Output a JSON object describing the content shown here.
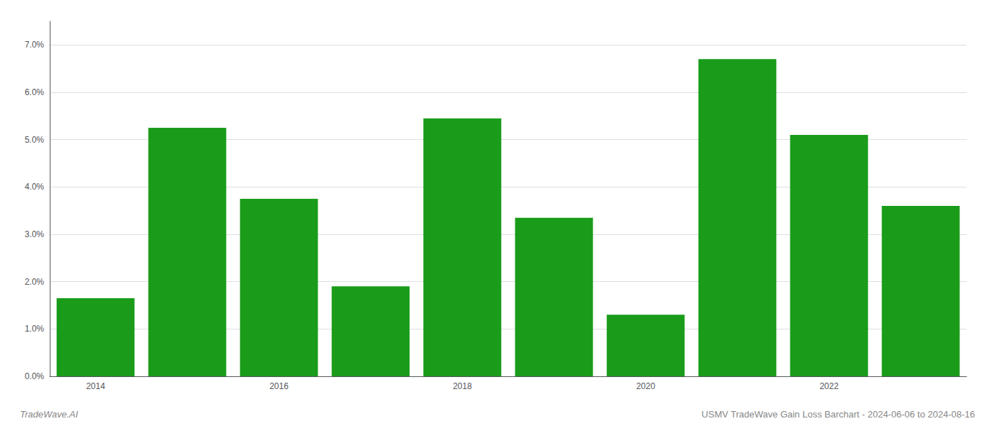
{
  "chart_data": {
    "type": "bar",
    "categories": [
      "2014",
      null,
      "2016",
      null,
      "2018",
      null,
      "2020",
      null,
      "2022",
      null
    ],
    "values": [
      0.0165,
      0.0525,
      0.0375,
      0.019,
      0.0545,
      0.0335,
      0.013,
      0.067,
      0.051,
      0.036
    ],
    "color": "#1a9c1a",
    "ylim": [
      0,
      0.075
    ],
    "yticks": [
      {
        "value": 0.0,
        "label": "0.0%"
      },
      {
        "value": 0.01,
        "label": "1.0%"
      },
      {
        "value": 0.02,
        "label": "2.0%"
      },
      {
        "value": 0.03,
        "label": "3.0%"
      },
      {
        "value": 0.04,
        "label": "4.0%"
      },
      {
        "value": 0.05,
        "label": "5.0%"
      },
      {
        "value": 0.06,
        "label": "6.0%"
      },
      {
        "value": 0.07,
        "label": "7.0%"
      }
    ],
    "grid": true,
    "annotations": [
      "TradeWave.AI",
      "USMV TradeWave Gain Loss Barchart - 2024-06-06 to 2024-08-16"
    ]
  }
}
